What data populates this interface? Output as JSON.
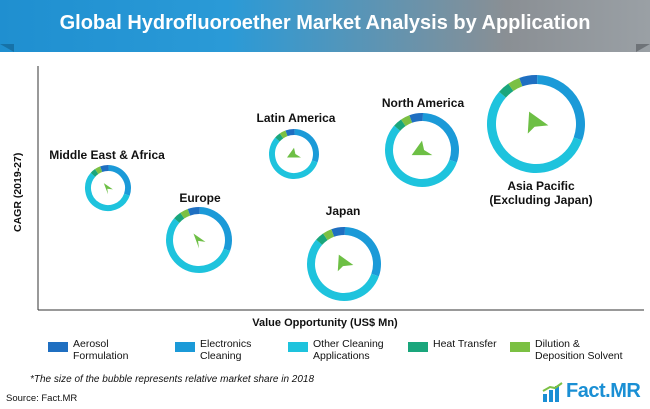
{
  "title": "Global Hydrofluoroether Market Analysis by Application",
  "chart_data": {
    "type": "bubble",
    "ylabel": "CAGR (2019-27)",
    "xlabel": "Value Opportunity (US$ Mn)",
    "segments": [
      {
        "name": "Aerosol Formulation",
        "color": "#1f6fc1"
      },
      {
        "name": "Electronics Cleaning",
        "color": "#1b9ad8"
      },
      {
        "name": "Other Cleaning Applications",
        "color": "#1ec3dd"
      },
      {
        "name": "Heat Transfer",
        "color": "#1aa67c"
      },
      {
        "name": "Dilution & Deposition Solvent",
        "color": "#7bc043"
      }
    ],
    "regions": [
      {
        "name": "Middle East & Africa",
        "label_lines": [
          "Middle East & Africa"
        ]
      },
      {
        "name": "Europe",
        "label_lines": [
          "Europe"
        ]
      },
      {
        "name": "Latin America",
        "label_lines": [
          "Latin America"
        ]
      },
      {
        "name": "Japan",
        "label_lines": [
          "Japan"
        ]
      },
      {
        "name": "North America",
        "label_lines": [
          "North America"
        ]
      },
      {
        "name": "Asia Pacific (Excluding Japan)",
        "label_lines": [
          "Asia Pacific",
          "(Excluding Japan)"
        ]
      }
    ]
  },
  "legend": {
    "items": [
      {
        "line1": "Aerosol",
        "line2": "Formulation",
        "color": "#1f6fc1"
      },
      {
        "line1": "Electronics",
        "line2": "Cleaning",
        "color": "#1b9ad8"
      },
      {
        "line1": "Other Cleaning",
        "line2": "Applications",
        "color": "#1ec3dd"
      },
      {
        "line1": "Heat Transfer",
        "line2": "",
        "color": "#1aa67c"
      },
      {
        "line1": "Dilution &",
        "line2": "Deposition Solvent",
        "color": "#7bc043"
      }
    ]
  },
  "footnote": "*The size of the bubble represents relative market share in 2018",
  "source": "Source: Fact.MR",
  "logo": {
    "text_main": "Fact",
    "text_dot": ".",
    "text_end": "MR"
  }
}
